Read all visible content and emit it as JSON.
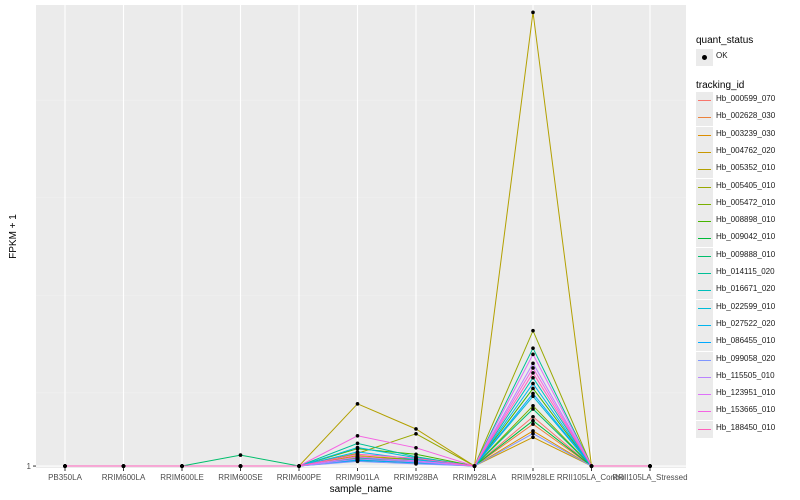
{
  "chart_data": {
    "type": "line",
    "xlabel": "sample_name",
    "ylabel": "FPKM + 1",
    "categories": [
      "PB350LA",
      "RRIM600LA",
      "RRIM600LE",
      "RRIM600SE",
      "RRIM600PE",
      "RRIM901LA",
      "RRIM928BA",
      "RRIM928LA",
      "RRIM928LE",
      "RRII105LA_Control",
      "RRII105LA_Stressed"
    ],
    "y_ticks": [
      "1"
    ],
    "ylim": [
      0.92,
      19.9
    ],
    "grid": true,
    "legend_position": "right",
    "colors": {
      "panel": "#ebebeb",
      "grid_major": "#ffffff",
      "grid_minor": "#f2f2f2",
      "point": "#000000"
    },
    "shape_legend": {
      "title": "quant_status",
      "items": [
        "OK"
      ]
    },
    "color_legend_title": "tracking_id",
    "series": [
      {
        "name": "Hb_000599_070",
        "color": "#F8766D",
        "values": [
          1,
          1,
          1,
          1,
          1,
          1.38,
          1.22,
          1,
          3.02,
          1,
          1
        ]
      },
      {
        "name": "Hb_002628_030",
        "color": "#EC823C",
        "values": [
          1,
          1,
          1,
          1,
          1,
          1.33,
          1.18,
          1,
          2.72,
          1,
          1
        ]
      },
      {
        "name": "Hb_003239_030",
        "color": "#DC8E00",
        "values": [
          1,
          1,
          1,
          1,
          1,
          1.27,
          1.11,
          1,
          2.44,
          1,
          1
        ]
      },
      {
        "name": "Hb_004762_020",
        "color": "#C99800",
        "values": [
          1,
          1,
          1,
          1,
          1,
          1.43,
          1.26,
          1,
          2.18,
          1,
          1
        ]
      },
      {
        "name": "Hb_005352_010",
        "color": "#B3A000",
        "values": [
          1,
          1,
          1,
          1,
          1,
          3.55,
          2.52,
          1,
          19.6,
          1,
          1
        ]
      },
      {
        "name": "Hb_005405_010",
        "color": "#99A800",
        "values": [
          1,
          1,
          1,
          1,
          1,
          1.52,
          2.32,
          1,
          6.55,
          1,
          1
        ]
      },
      {
        "name": "Hb_005472_010",
        "color": "#79AF00",
        "values": [
          1,
          1,
          1,
          1,
          1,
          1.35,
          1.28,
          1,
          3.47,
          1,
          1
        ]
      },
      {
        "name": "Hb_008898_010",
        "color": "#45B500",
        "values": [
          1,
          1,
          1,
          1,
          1,
          1.71,
          1.48,
          1,
          4.18,
          1,
          1
        ]
      },
      {
        "name": "Hb_009042_010",
        "color": "#00BA38",
        "values": [
          1,
          1,
          1,
          1,
          1,
          1.22,
          1.15,
          1,
          2.86,
          1,
          1
        ]
      },
      {
        "name": "Hb_009888_010",
        "color": "#00BE6C",
        "values": [
          1,
          1,
          1,
          1.45,
          1,
          1.26,
          1.19,
          1,
          3.34,
          1,
          1
        ]
      },
      {
        "name": "Hb_014115_020",
        "color": "#00BF96",
        "values": [
          1,
          1,
          1,
          1,
          1,
          1.93,
          1.38,
          1,
          5.83,
          1,
          1
        ]
      },
      {
        "name": "Hb_016671_020",
        "color": "#00BFBB",
        "values": [
          1,
          1,
          1,
          1,
          1,
          1.31,
          1.24,
          1,
          4.62,
          1,
          1
        ]
      },
      {
        "name": "Hb_022599_010",
        "color": "#00BCD8",
        "values": [
          1,
          1,
          1,
          1,
          1,
          1.76,
          1.34,
          1,
          3.86,
          1,
          1
        ]
      },
      {
        "name": "Hb_027522_020",
        "color": "#00B5EE",
        "values": [
          1,
          1,
          1,
          1,
          1,
          1.58,
          1.27,
          1,
          4.38,
          1,
          1
        ]
      },
      {
        "name": "Hb_086455_010",
        "color": "#00A9FF",
        "values": [
          1,
          1,
          1,
          1,
          1,
          1.24,
          1.13,
          1,
          3.97,
          1,
          1
        ]
      },
      {
        "name": "Hb_099058_020",
        "color": "#7F96FF",
        "values": [
          1,
          1,
          1,
          1,
          1,
          1.19,
          1.09,
          1,
          2.33,
          1,
          1
        ]
      },
      {
        "name": "Hb_115505_010",
        "color": "#B983FF",
        "values": [
          1,
          1,
          1,
          1,
          1,
          1.29,
          1.17,
          1,
          5.21,
          1,
          1
        ]
      },
      {
        "name": "Hb_123951_010",
        "color": "#DE71F9",
        "values": [
          1,
          1,
          1,
          1,
          1,
          1.37,
          1.21,
          1,
          5.58,
          1,
          1
        ]
      },
      {
        "name": "Hb_153665_010",
        "color": "#F564E3",
        "values": [
          1,
          1,
          1,
          1,
          1,
          2.24,
          1.75,
          1,
          5.02,
          1,
          1
        ]
      },
      {
        "name": "Hb_188450_010",
        "color": "#FF62BC",
        "values": [
          1,
          1,
          1,
          1,
          1,
          1.48,
          1.32,
          1,
          4.82,
          1,
          1
        ]
      }
    ]
  }
}
